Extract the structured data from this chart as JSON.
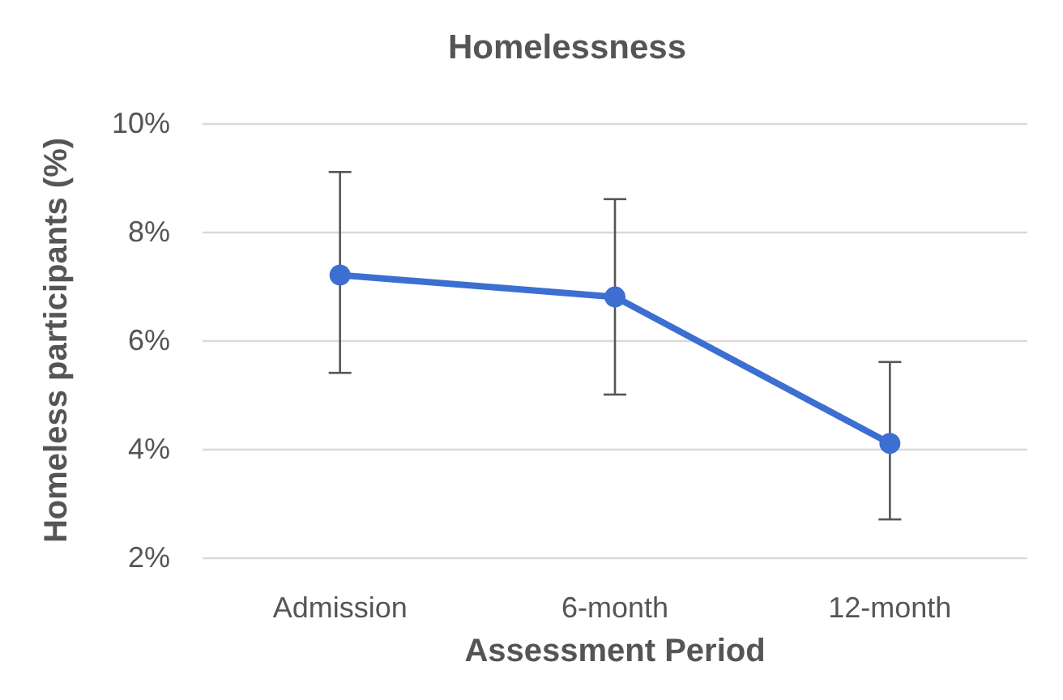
{
  "chart_data": {
    "type": "line",
    "title": "Homelessness",
    "xlabel": "Assessment Period",
    "ylabel": "Homeless participants (%)",
    "categories": [
      "Admission",
      "6-month",
      "12-month"
    ],
    "series": [
      {
        "color": "#3c6fd1",
        "values": [
          7.2,
          6.8,
          4.1
        ],
        "errors": [
          [
            5.4,
            9.1
          ],
          [
            5.0,
            8.6
          ],
          [
            2.7,
            5.6
          ]
        ]
      }
    ],
    "ylim": [
      2,
      10
    ],
    "yticks": [
      {
        "value": 2,
        "label": "2%"
      },
      {
        "value": 4,
        "label": "4%"
      },
      {
        "value": 6,
        "label": "6%"
      },
      {
        "value": 8,
        "label": "8%"
      },
      {
        "value": 10,
        "label": "10%"
      }
    ],
    "grid": "y",
    "marker": "circle",
    "line_style": "solid"
  }
}
